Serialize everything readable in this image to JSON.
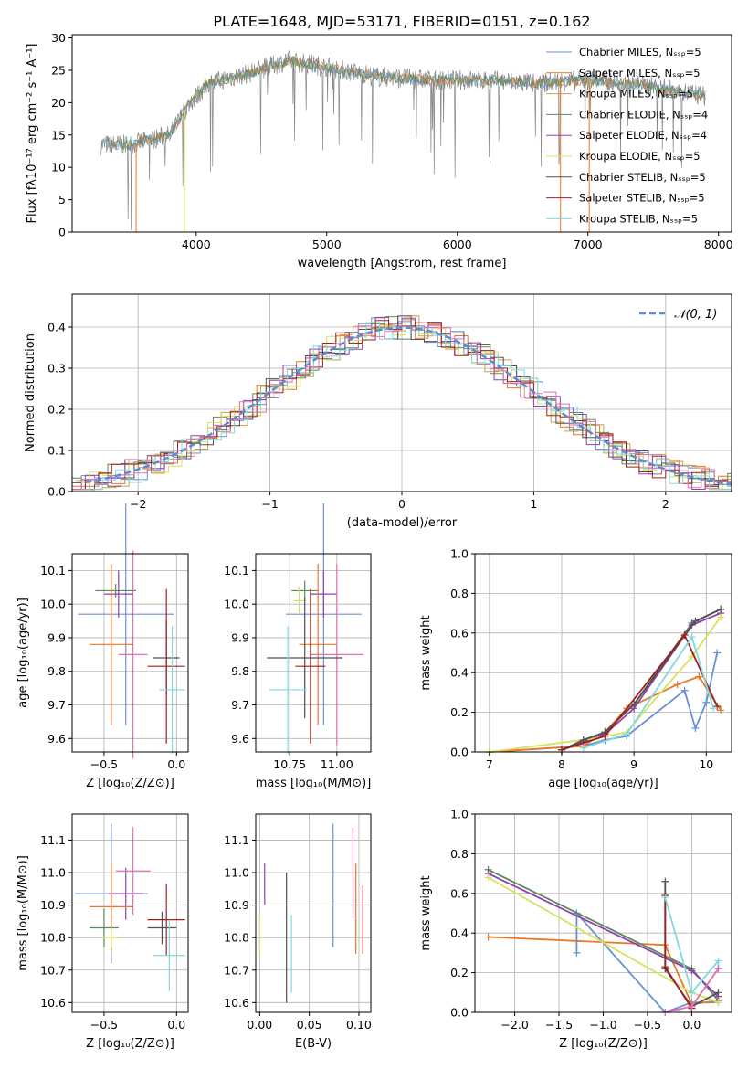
{
  "title": "PLATE=1648, MJD=53171, FIBERID=0151, z=0.162",
  "colors": [
    "#6b8fd6",
    "#e8782a",
    "#c8a04a",
    "#5a8a5a",
    "#9040b0",
    "#d8e060",
    "#505050",
    "#a02020",
    "#80d8e0",
    "#e070b0"
  ],
  "chart_data": [
    {
      "id": "spectrum",
      "type": "line",
      "xlabel": "wavelength [Angstrom, rest frame]",
      "ylabel": "Flux [fλ10⁻¹⁷ erg cm⁻² s⁻¹ A⁻¹]",
      "xlim": [
        3050,
        8100
      ],
      "ylim": [
        0,
        30.5
      ],
      "xticks": [
        "4000",
        "5000",
        "6000",
        "7000",
        "8000"
      ],
      "yticks": [
        "0",
        "5",
        "10",
        "15",
        "20",
        "25",
        "30"
      ],
      "legend": [
        {
          "label": "Chabrier MILES, Nₛₛₚ=5",
          "color": "#6b8fd6"
        },
        {
          "label": "Salpeter MILES, Nₛₛₚ=5",
          "color": "#e8782a"
        },
        {
          "label": "Kroupa MILES, Nₛₛₚ=5",
          "color": "#c8a04a"
        },
        {
          "label": "Chabrier ELODIE, Nₛₛₚ=4",
          "color": "#5a8a5a"
        },
        {
          "label": "Salpeter ELODIE, Nₛₛₚ=4",
          "color": "#9040b0"
        },
        {
          "label": "Kroupa ELODIE, Nₛₛₚ=5",
          "color": "#d8e060"
        },
        {
          "label": "Chabrier STELIB, Nₛₛₚ=5",
          "color": "#505050"
        },
        {
          "label": "Salpeter STELIB, Nₛₛₚ=5",
          "color": "#a02020"
        },
        {
          "label": "Kroupa STELIB, Nₛₛₚ=5",
          "color": "#80d8e0"
        }
      ],
      "continuum": {
        "x": [
          3270,
          3500,
          3800,
          3950,
          4100,
          4400,
          4700,
          5000,
          5400,
          5800,
          6200,
          6600,
          7000,
          7500,
          7900
        ],
        "y": [
          13.5,
          13.5,
          15,
          20,
          23,
          24.5,
          26.5,
          25.5,
          24,
          23.5,
          23.5,
          23,
          23.5,
          22.5,
          21
        ]
      }
    },
    {
      "id": "residuals",
      "type": "step",
      "xlabel": "(data-model)/error",
      "ylabel": "Normed distribution",
      "xlim": [
        -2.5,
        2.5
      ],
      "ylim": [
        0,
        0.48
      ],
      "xticks": [
        "−2",
        "−1",
        "0",
        "1",
        "2"
      ],
      "yticks": [
        "0.0",
        "0.1",
        "0.2",
        "0.3",
        "0.4"
      ],
      "legend": [
        {
          "label": "𝒩(0, 1)",
          "color": "#5b8bd0"
        }
      ]
    },
    {
      "id": "age-vs-z",
      "type": "errorbar",
      "xlabel": "Z [log₁₀(Z/Z⊙)]",
      "ylabel": "age  [log₁₀(age/yr)]",
      "xlim": [
        -0.72,
        0.08
      ],
      "ylim": [
        9.56,
        10.15
      ],
      "xticks": [
        "−0.5",
        "0.0"
      ],
      "yticks": [
        "9.6",
        "9.7",
        "9.8",
        "9.9",
        "10.0",
        "10.1"
      ],
      "points": [
        {
          "x": -0.35,
          "y": 9.97,
          "xe": 0.33,
          "ye": 0.33,
          "c": "#6b8fd6"
        },
        {
          "x": -0.42,
          "y": 10.04,
          "xe": 0.14,
          "ye": 0.02,
          "c": "#5a8a5a"
        },
        {
          "x": -0.4,
          "y": 10.03,
          "xe": 0.1,
          "ye": 0.07,
          "c": "#9040b0"
        },
        {
          "x": -0.45,
          "y": 9.88,
          "xe": 0.15,
          "ye": 0.24,
          "c": "#e8782a"
        },
        {
          "x": -0.3,
          "y": 9.85,
          "xe": 0.1,
          "ye": 0.31,
          "c": "#e070b0"
        },
        {
          "x": -0.07,
          "y": 9.84,
          "xe": 0.09,
          "ye": 0.11,
          "c": "#505050"
        },
        {
          "x": -0.07,
          "y": 9.815,
          "xe": 0.13,
          "ye": 0.23,
          "c": "#a02020"
        },
        {
          "x": -0.03,
          "y": 9.745,
          "xe": 0.09,
          "ye": 0.19,
          "c": "#80d8e0"
        }
      ]
    },
    {
      "id": "age-vs-mass",
      "type": "errorbar",
      "xlabel": "mass [log₁₀(M/M⊙)]",
      "ylabel": "",
      "xlim": [
        10.57,
        11.18
      ],
      "ylim": [
        9.56,
        10.15
      ],
      "xticks": [
        "10.75",
        "11.00"
      ],
      "yticks": [
        "9.6",
        "9.7",
        "9.8",
        "9.9",
        "10.0",
        "10.1"
      ],
      "points": [
        {
          "x": 10.93,
          "y": 9.97,
          "xe": 0.2,
          "ye": 0.33,
          "c": "#6b8fd6"
        },
        {
          "x": 10.83,
          "y": 10.04,
          "xe": 0.07,
          "ye": 0.03,
          "c": "#5a8a5a"
        },
        {
          "x": 10.93,
          "y": 10.03,
          "xe": 0.07,
          "ye": 0.07,
          "c": "#9040b0"
        },
        {
          "x": 10.9,
          "y": 9.88,
          "xe": 0.1,
          "ye": 0.24,
          "c": "#e8782a"
        },
        {
          "x": 11.0,
          "y": 9.85,
          "xe": 0.14,
          "ye": 0.27,
          "c": "#e070b0"
        },
        {
          "x": 10.8,
          "y": 10.01,
          "xe": 0.03,
          "ye": 0.04,
          "c": "#d8e060"
        },
        {
          "x": 10.83,
          "y": 9.84,
          "xe": 0.2,
          "ye": 0.18,
          "c": "#505050"
        },
        {
          "x": 10.86,
          "y": 9.815,
          "xe": 0.08,
          "ye": 0.23,
          "c": "#a02020"
        },
        {
          "x": 10.74,
          "y": 9.745,
          "xe": 0.1,
          "ye": 0.19,
          "c": "#80d8e0"
        }
      ]
    },
    {
      "id": "massweight-vs-age",
      "type": "line",
      "xlabel": "age  [log₁₀(age/yr)]",
      "ylabel": "mass weight",
      "xlim": [
        6.8,
        10.35
      ],
      "ylim": [
        0,
        1.0
      ],
      "xticks": [
        "7",
        "8",
        "9",
        "10"
      ],
      "yticks": [
        "0.0",
        "0.2",
        "0.4",
        "0.6",
        "0.8",
        "1.0"
      ],
      "series": [
        {
          "c": "#6b8fd6",
          "x": [
            7.0,
            8.3,
            8.6,
            8.9,
            9.7,
            9.85,
            10.0,
            10.15
          ],
          "y": [
            0.0,
            0.03,
            0.06,
            0.08,
            0.31,
            0.12,
            0.25,
            0.5
          ]
        },
        {
          "c": "#e8782a",
          "x": [
            7.0,
            8.3,
            8.6,
            8.9,
            9.6,
            9.9,
            10.2
          ],
          "y": [
            0.0,
            0.03,
            0.1,
            0.22,
            0.34,
            0.38,
            0.21
          ]
        },
        {
          "c": "#5a8a5a",
          "x": [
            8.0,
            8.3,
            8.6,
            9.0,
            9.8,
            10.2
          ],
          "y": [
            0.01,
            0.06,
            0.1,
            0.24,
            0.65,
            0.72
          ]
        },
        {
          "c": "#9040b0",
          "x": [
            8.0,
            8.3,
            8.6,
            9.0,
            9.8,
            10.2
          ],
          "y": [
            0.01,
            0.05,
            0.09,
            0.22,
            0.64,
            0.7
          ]
        },
        {
          "c": "#d8e060",
          "x": [
            7.0,
            8.5,
            8.9,
            9.8,
            10.2
          ],
          "y": [
            0.0,
            0.07,
            0.1,
            0.48,
            0.68
          ]
        },
        {
          "c": "#505050",
          "x": [
            8.0,
            8.3,
            8.6,
            9.0,
            9.85,
            10.2
          ],
          "y": [
            0.01,
            0.06,
            0.1,
            0.24,
            0.66,
            0.72
          ]
        },
        {
          "c": "#a02020",
          "x": [
            8.0,
            8.6,
            9.7,
            10.15
          ],
          "y": [
            0.01,
            0.08,
            0.59,
            0.23
          ]
        },
        {
          "c": "#80d8e0",
          "x": [
            8.3,
            8.9,
            9.8,
            10.1
          ],
          "y": [
            0.02,
            0.09,
            0.58,
            0.22
          ]
        }
      ]
    },
    {
      "id": "mass-vs-z",
      "type": "errorbar",
      "xlabel": "Z [log₁₀(Z/Z⊙)]",
      "ylabel": "mass [log₁₀(M/M⊙)]",
      "xlim": [
        -0.72,
        0.08
      ],
      "ylim": [
        10.57,
        11.18
      ],
      "xticks": [
        "−0.5",
        "0.0"
      ],
      "yticks": [
        "10.6",
        "10.7",
        "10.8",
        "10.9",
        "11.0",
        "11.1"
      ],
      "points": [
        {
          "x": -0.45,
          "y": 10.935,
          "xe": 0.25,
          "ye": 0.215,
          "c": "#6b8fd6"
        },
        {
          "x": -0.35,
          "y": 10.935,
          "xe": 0.12,
          "ye": 0.08,
          "c": "#9040b0"
        },
        {
          "x": -0.45,
          "y": 10.895,
          "xe": 0.15,
          "ye": 0.14,
          "c": "#e8782a"
        },
        {
          "x": -0.3,
          "y": 11.005,
          "xe": 0.12,
          "ye": 0.135,
          "c": "#e070b0"
        },
        {
          "x": -0.5,
          "y": 10.83,
          "xe": 0.1,
          "ye": 0.06,
          "c": "#5a8a5a"
        },
        {
          "x": -0.45,
          "y": 10.8,
          "xe": 0.06,
          "ye": 0.03,
          "c": "#d8e060"
        },
        {
          "x": -0.07,
          "y": 10.855,
          "xe": 0.13,
          "ye": 0.11,
          "c": "#a02020"
        },
        {
          "x": -0.1,
          "y": 10.83,
          "xe": 0.1,
          "ye": 0.05,
          "c": "#505050"
        },
        {
          "x": -0.05,
          "y": 10.745,
          "xe": 0.11,
          "ye": 0.11,
          "c": "#80d8e0"
        }
      ]
    },
    {
      "id": "mass-vs-ebv",
      "type": "errorbar",
      "xlabel": "E(B-V)",
      "ylabel": "",
      "xlim": [
        -0.004,
        0.112
      ],
      "ylim": [
        10.57,
        11.18
      ],
      "xticks": [
        "0.00",
        "0.05",
        "0.10"
      ],
      "yticks": [
        "10.6",
        "10.7",
        "10.8",
        "10.9",
        "11.0",
        "11.1"
      ],
      "points": [
        {
          "x": 0.0,
          "y": 10.81,
          "xe": 0,
          "ye": 0.06,
          "c": "#d8e060"
        },
        {
          "x": 0.005,
          "y": 10.965,
          "xe": 0,
          "ye": 0.065,
          "c": "#9040b0"
        },
        {
          "x": 0.027,
          "y": 10.8,
          "xe": 0,
          "ye": 0.2,
          "c": "#505050"
        },
        {
          "x": 0.032,
          "y": 10.75,
          "xe": 0,
          "ye": 0.12,
          "c": "#80d8e0"
        },
        {
          "x": 0.074,
          "y": 10.96,
          "xe": 0,
          "ye": 0.19,
          "c": "#6b8fd6"
        },
        {
          "x": 0.094,
          "y": 11.0,
          "xe": 0,
          "ye": 0.14,
          "c": "#e070b0"
        },
        {
          "x": 0.097,
          "y": 10.89,
          "xe": 0,
          "ye": 0.14,
          "c": "#e8782a"
        },
        {
          "x": 0.104,
          "y": 10.855,
          "xe": 0,
          "ye": 0.105,
          "c": "#a02020"
        }
      ]
    },
    {
      "id": "massweight-vs-z",
      "type": "line",
      "xlabel": "Z [log₁₀(Z/Z⊙)]",
      "ylabel": "mass weight",
      "xlim": [
        -2.45,
        0.45
      ],
      "ylim": [
        0,
        1.0
      ],
      "xticks": [
        "−2.0",
        "−1.5",
        "−1.0",
        "−0.5",
        "0.0"
      ],
      "yticks": [
        "0.0",
        "0.2",
        "0.4",
        "0.6",
        "0.8",
        "1.0"
      ],
      "series": [
        {
          "c": "#6b8fd6",
          "x": [
            -1.3,
            -1.3,
            -0.3,
            0.0,
            0.3
          ],
          "y": [
            0.3,
            0.5,
            0.0,
            0.05,
            0.05
          ]
        },
        {
          "c": "#e8782a",
          "x": [
            -2.3,
            -0.3,
            0.0,
            0.3
          ],
          "y": [
            0.38,
            0.34,
            0.04,
            0.06
          ]
        },
        {
          "c": "#5a8a5a",
          "x": [
            -2.3,
            0.0,
            0.3
          ],
          "y": [
            0.72,
            0.22,
            0.06
          ]
        },
        {
          "c": "#9040b0",
          "x": [
            -2.3,
            0.0,
            0.3
          ],
          "y": [
            0.7,
            0.21,
            0.08
          ]
        },
        {
          "c": "#d8e060",
          "x": [
            -2.3,
            0.0,
            0.3
          ],
          "y": [
            0.68,
            0.1,
            0.05
          ]
        },
        {
          "c": "#505050",
          "x": [
            -0.3,
            -0.3,
            0.0,
            0.3
          ],
          "y": [
            0.66,
            0.22,
            0.03,
            0.1
          ]
        },
        {
          "c": "#a02020",
          "x": [
            -0.3,
            -0.3,
            0.0
          ],
          "y": [
            0.59,
            0.23,
            0.02
          ]
        },
        {
          "c": "#80d8e0",
          "x": [
            -0.3,
            0.0,
            0.3,
            0.3
          ],
          "y": [
            0.58,
            0.1,
            0.26,
            0.22
          ]
        },
        {
          "c": "#e070b0",
          "x": [
            -0.3,
            0.0,
            0.3
          ],
          "y": [
            0.0,
            0.03,
            0.22
          ]
        }
      ]
    }
  ]
}
